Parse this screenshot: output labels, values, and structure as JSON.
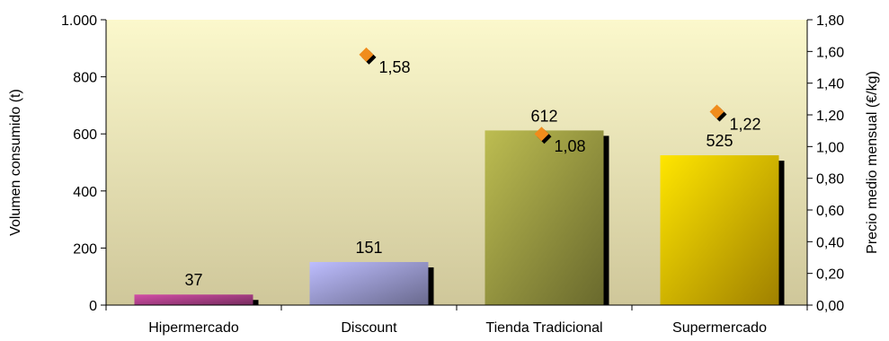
{
  "chart_data": {
    "type": "bar",
    "categories": [
      "Hipermercado",
      "Discount",
      "Tienda Tradicional",
      "Supermercado"
    ],
    "series": [
      {
        "axis": "left",
        "kind": "bar",
        "values": [
          37,
          151,
          612,
          525
        ],
        "colors": [
          "#9c3a7c",
          "#8c8cbc",
          "#8c8c3c",
          "#d4aa00"
        ]
      },
      {
        "axis": "right",
        "kind": "marker",
        "values": [
          null,
          1.58,
          1.08,
          1.22
        ],
        "labels": [
          "",
          "1,58",
          "1,08",
          "1,22"
        ],
        "color": "#f08c1c"
      }
    ],
    "bar_labels": [
      "37",
      "151",
      "612",
      "525"
    ],
    "ylabel": "Volumen consumido (t)",
    "y2label": "Precio medio mensual (€/kg)",
    "ylim": [
      0,
      1000
    ],
    "y2lim": [
      0,
      1.8
    ],
    "yticks": [
      0,
      200,
      400,
      600,
      800,
      1000
    ],
    "ytick_labels": [
      "0",
      "200",
      "400",
      "600",
      "800",
      "1.000"
    ],
    "y2ticks": [
      0,
      0.2,
      0.4,
      0.6,
      0.8,
      1.0,
      1.2,
      1.4,
      1.6,
      1.8
    ],
    "y2tick_labels": [
      "0,00",
      "0,20",
      "0,40",
      "0,60",
      "0,80",
      "1,00",
      "1,20",
      "1,40",
      "1,60",
      "1,80"
    ],
    "grid": false,
    "legend": false,
    "plot_background": "#f6f2b4"
  }
}
